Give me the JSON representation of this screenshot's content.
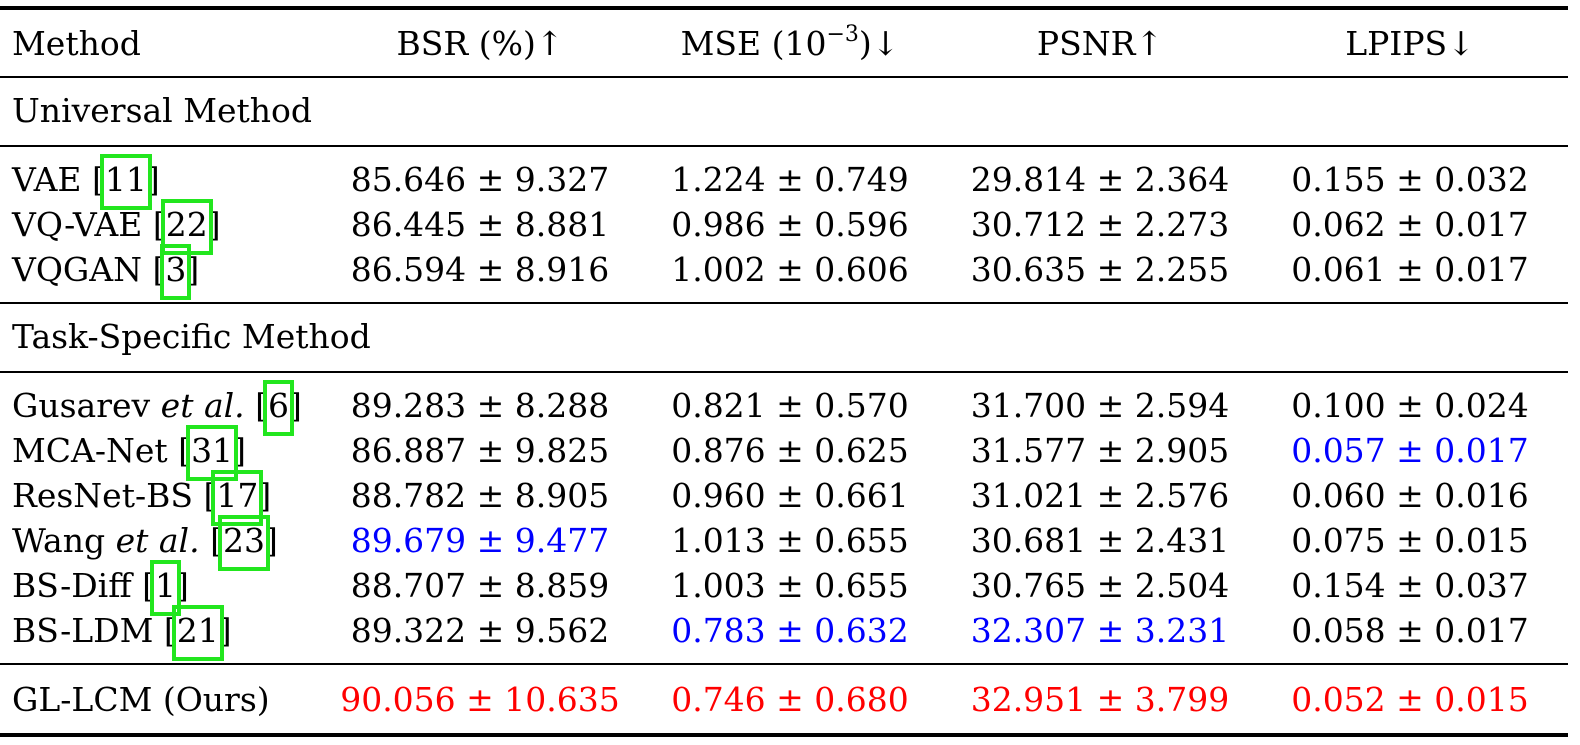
{
  "header": {
    "method": "Method",
    "bsr": "BSR (%)↑",
    "mse_prefix": "MSE (10",
    "mse_exp": "−3",
    "mse_suffix": ")↓",
    "psnr": "PSNR↑",
    "lpips": "LPIPS↓"
  },
  "sections": {
    "universal": "Universal Method",
    "task_specific": "Task-Specific Method"
  },
  "rows": [
    {
      "name": "VAE [",
      "cite": "11",
      "after": "]",
      "bsr": "85.646 ± 9.327",
      "mse": "1.224 ± 0.749",
      "psnr": "29.814 ± 2.364",
      "lpips": "0.155 ± 0.032"
    },
    {
      "name": "VQ-VAE [",
      "cite": "22",
      "after": "]",
      "bsr": "86.445 ± 8.881",
      "mse": "0.986 ± 0.596",
      "psnr": "30.712 ± 2.273",
      "lpips": "0.062 ± 0.017"
    },
    {
      "name": "VQGAN [",
      "cite": "3",
      "after": "]",
      "bsr": "86.594 ± 8.916",
      "mse": "1.002 ± 0.606",
      "psnr": "30.635 ± 2.255",
      "lpips": "0.061 ± 0.017"
    },
    {
      "name": "Gusarev ",
      "ital": "et al.",
      "name2": " [",
      "cite": "6",
      "after": "]",
      "bsr": "89.283 ± 8.288",
      "mse": "0.821 ± 0.570",
      "psnr": "31.700 ± 2.594",
      "lpips": "0.100 ± 0.024"
    },
    {
      "name": "MCA-Net [",
      "cite": "31",
      "after": "]",
      "bsr": "86.887 ± 9.825",
      "mse": "0.876 ± 0.625",
      "psnr": "31.577 ± 2.905",
      "lpips": "0.057 ± 0.017"
    },
    {
      "name": "ResNet-BS [",
      "cite": "17",
      "after": "]",
      "bsr": "88.782 ± 8.905",
      "mse": "0.960 ± 0.661",
      "psnr": "31.021 ± 2.576",
      "lpips": "0.060 ± 0.016"
    },
    {
      "name": "Wang ",
      "ital": "et al.",
      "name2": " [",
      "cite": "23",
      "after": "]",
      "bsr": "89.679 ± 9.477",
      "mse": "1.013 ± 0.655",
      "psnr": "30.681 ± 2.431",
      "lpips": "0.075 ± 0.015"
    },
    {
      "name": "BS-Diff [",
      "cite": "1",
      "after": "]",
      "bsr": "88.707 ± 8.859",
      "mse": "1.003 ± 0.655",
      "psnr": "30.765 ± 2.504",
      "lpips": "0.154 ± 0.037"
    },
    {
      "name": "BS-LDM [",
      "cite": "21",
      "after": "]",
      "bsr": "89.322 ± 9.562",
      "mse": "0.783 ± 0.632",
      "psnr": "32.307 ± 3.231",
      "lpips": "0.058 ± 0.017"
    },
    {
      "name": "GL-LCM (Ours)",
      "bsr": "90.056 ± 10.635",
      "mse": "0.746 ± 0.680",
      "psnr": "32.951 ± 3.799",
      "lpips": "0.052 ± 0.015"
    }
  ],
  "colors": {
    "best": "#ff0000",
    "second": "#0000ff",
    "citation_box": "#22e61e"
  }
}
